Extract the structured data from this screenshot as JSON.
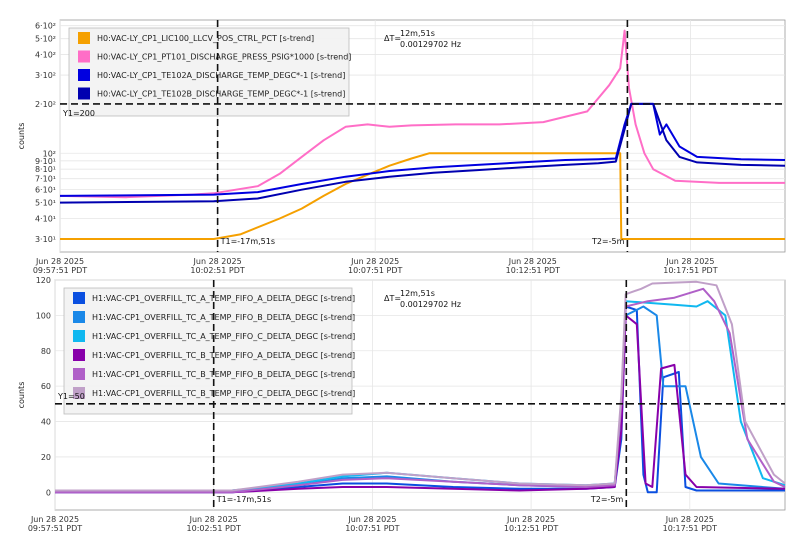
{
  "time_ticks": [
    {
      "date": "Jun 28 2025",
      "time": "09:57:51 PDT"
    },
    {
      "date": "Jun 28 2025",
      "time": "10:02:51 PDT"
    },
    {
      "date": "Jun 28 2025",
      "time": "10:07:51 PDT"
    },
    {
      "date": "Jun 28 2025",
      "time": "10:12:51 PDT"
    },
    {
      "date": "Jun 28 2025",
      "time": "10:17:51 PDT"
    }
  ],
  "cursors": {
    "t1_label": "T1=-17m,51s",
    "t2_label": "T2=-5m",
    "delta_prefix": "ΔT=",
    "delta_time": "12m,51s",
    "delta_freq": "0.00129702 Hz"
  },
  "colors": {
    "orange": "#f5a000",
    "pink": "#ff6ec7",
    "blue": "#0000e0",
    "darkblue": "#0000b0",
    "c_blue": "#0a4fe0",
    "c_azure": "#1a88e8",
    "c_sky": "#10b8f0",
    "c_purple": "#8800aa",
    "c_orchid": "#b060c8",
    "c_lilac": "#c0a0c8"
  },
  "chart_data": [
    {
      "type": "line",
      "ylabel": "counts",
      "yscale": "log",
      "ylim": [
        25,
        650
      ],
      "y_ticks": [
        {
          "value": 30,
          "label": "3·10¹"
        },
        {
          "value": 40,
          "label": "4·10¹"
        },
        {
          "value": 50,
          "label": "5·10¹"
        },
        {
          "value": 60,
          "label": "6·10¹"
        },
        {
          "value": 70,
          "label": "7·10¹"
        },
        {
          "value": 80,
          "label": "8·10¹"
        },
        {
          "value": 90,
          "label": "9·10¹"
        },
        {
          "value": 100,
          "label": "10²"
        },
        {
          "value": 200,
          "label": "2·10²"
        },
        {
          "value": 300,
          "label": "3·10²"
        },
        {
          "value": 400,
          "label": "4·10²"
        },
        {
          "value": 500,
          "label": "5·10²"
        },
        {
          "value": 600,
          "label": "6·10²"
        }
      ],
      "hline": {
        "value": 200,
        "label": "Y1=200"
      },
      "legend_position": "top-left",
      "series": [
        {
          "name": "H0:VAC-LY_CP1_LIC100_LLCV_POS_CTRL_PCT [s-trend]",
          "color": "#f5a000",
          "points": [
            [
              0,
              30
            ],
            [
              7,
              30
            ],
            [
              8.2,
              32
            ],
            [
              10,
              40
            ],
            [
              11,
              46
            ],
            [
              12,
              55
            ],
            [
              13,
              65
            ],
            [
              14,
              74
            ],
            [
              15,
              84
            ],
            [
              16,
              93
            ],
            [
              16.8,
              100
            ],
            [
              24,
              100
            ],
            [
              25.5,
              100
            ],
            [
              25.55,
              30
            ],
            [
              33,
              30
            ]
          ]
        },
        {
          "name": "H0:VAC-LY_CP1_PT101_DISCHARGE_PRESS_PSIG*1000 [s-trend]",
          "color": "#ff6ec7",
          "points": [
            [
              0,
              55
            ],
            [
              3,
              54
            ],
            [
              6,
              56
            ],
            [
              7,
              57
            ],
            [
              8,
              60
            ],
            [
              9,
              63
            ],
            [
              10,
              75
            ],
            [
              11,
              95
            ],
            [
              12,
              120
            ],
            [
              13,
              145
            ],
            [
              14,
              150
            ],
            [
              15,
              145
            ],
            [
              16,
              148
            ],
            [
              18,
              150
            ],
            [
              20,
              150
            ],
            [
              22,
              155
            ],
            [
              24,
              180
            ],
            [
              25,
              260
            ],
            [
              25.5,
              330
            ],
            [
              25.7,
              560
            ],
            [
              25.9,
              250
            ],
            [
              26.2,
              150
            ],
            [
              26.6,
              100
            ],
            [
              27,
              80
            ],
            [
              28,
              68
            ],
            [
              30,
              66
            ],
            [
              33,
              66
            ]
          ]
        },
        {
          "name": "H0:VAC-LY_CP1_TE102A_DISCHARGE_TEMP_DEGC*-1 [s-trend]",
          "color": "#0000e0",
          "points": [
            [
              0,
              55
            ],
            [
              7,
              56
            ],
            [
              9,
              58
            ],
            [
              11,
              65
            ],
            [
              13,
              72
            ],
            [
              15,
              78
            ],
            [
              17,
              82
            ],
            [
              19,
              85
            ],
            [
              21,
              88
            ],
            [
              23,
              91
            ],
            [
              24.5,
              92
            ],
            [
              25.3,
              93
            ],
            [
              25.7,
              150
            ],
            [
              26,
              200
            ],
            [
              27,
              200
            ],
            [
              27.3,
              130
            ],
            [
              27.6,
              150
            ],
            [
              28.2,
              110
            ],
            [
              29,
              95
            ],
            [
              31,
              92
            ],
            [
              33,
              91
            ]
          ]
        },
        {
          "name": "H0:VAC-LY_CP1_TE102B_DISCHARGE_TEMP_DEGC*-1 [s-trend]",
          "color": "#0000b0",
          "points": [
            [
              0,
              50
            ],
            [
              7,
              51
            ],
            [
              9,
              53
            ],
            [
              11,
              60
            ],
            [
              13,
              67
            ],
            [
              15,
              72
            ],
            [
              17,
              76
            ],
            [
              19,
              79
            ],
            [
              21,
              82
            ],
            [
              23,
              85
            ],
            [
              24.5,
              87
            ],
            [
              25.3,
              89
            ],
            [
              25.7,
              140
            ],
            [
              26,
              200
            ],
            [
              27,
              200
            ],
            [
              27.6,
              120
            ],
            [
              28.2,
              95
            ],
            [
              29,
              88
            ],
            [
              31,
              85
            ],
            [
              33,
              84
            ]
          ]
        }
      ]
    },
    {
      "type": "line",
      "ylabel": "counts",
      "yscale": "linear",
      "ylim": [
        -10,
        120
      ],
      "y_ticks": [
        {
          "value": 0,
          "label": "0"
        },
        {
          "value": 20,
          "label": "20"
        },
        {
          "value": 40,
          "label": "40"
        },
        {
          "value": 60,
          "label": "60"
        },
        {
          "value": 80,
          "label": "80"
        },
        {
          "value": 100,
          "label": "100"
        },
        {
          "value": 120,
          "label": "120"
        }
      ],
      "hline": {
        "value": 50,
        "label": "Y1=50"
      },
      "legend_position": "top-left",
      "series": [
        {
          "name": "H1:VAC-CP1_OVERFILL_TC_A_TEMP_FIFO_A_DELTA_DEGC [s-trend]",
          "color": "#0a4fe0",
          "points": [
            [
              0,
              0
            ],
            [
              7,
              0
            ],
            [
              8,
              0
            ],
            [
              11,
              3
            ],
            [
              13,
              5
            ],
            [
              15,
              5
            ],
            [
              18,
              3
            ],
            [
              21,
              2
            ],
            [
              24,
              2
            ],
            [
              25.3,
              3
            ],
            [
              25.6,
              30
            ],
            [
              25.8,
              105
            ],
            [
              26.3,
              103
            ],
            [
              26.6,
              10
            ],
            [
              26.8,
              0
            ],
            [
              27.2,
              0
            ],
            [
              27.5,
              65
            ],
            [
              28.2,
              68
            ],
            [
              28.5,
              3
            ],
            [
              29,
              1
            ],
            [
              33,
              1
            ]
          ]
        },
        {
          "name": "H1:VAC-CP1_OVERFILL_TC_A_TEMP_FIFO_B_DELTA_DEGC [s-trend]",
          "color": "#1a88e8",
          "points": [
            [
              0,
              1
            ],
            [
              7,
              1
            ],
            [
              8,
              1
            ],
            [
              11,
              4
            ],
            [
              13,
              8
            ],
            [
              15,
              9
            ],
            [
              18,
              6
            ],
            [
              21,
              4
            ],
            [
              24,
              3
            ],
            [
              25.3,
              5
            ],
            [
              25.6,
              40
            ],
            [
              25.8,
              100
            ],
            [
              26.6,
              105
            ],
            [
              27.2,
              100
            ],
            [
              27.5,
              60
            ],
            [
              28.5,
              60
            ],
            [
              29.2,
              20
            ],
            [
              30,
              5
            ],
            [
              33,
              2
            ]
          ]
        },
        {
          "name": "H1:VAC-CP1_OVERFILL_TC_A_TEMP_FIFO_C_DELTA_DEGC [s-trend]",
          "color": "#10b8f0",
          "points": [
            [
              0,
              1
            ],
            [
              7,
              1
            ],
            [
              8,
              1
            ],
            [
              11,
              5
            ],
            [
              13,
              9
            ],
            [
              15,
              11
            ],
            [
              18,
              8
            ],
            [
              21,
              5
            ],
            [
              24,
              4
            ],
            [
              25.3,
              5
            ],
            [
              25.6,
              45
            ],
            [
              25.8,
              108
            ],
            [
              28,
              106
            ],
            [
              29,
              105
            ],
            [
              29.5,
              108
            ],
            [
              30.3,
              100
            ],
            [
              31,
              40
            ],
            [
              32,
              8
            ],
            [
              33,
              4
            ]
          ]
        },
        {
          "name": "H1:VAC-CP1_OVERFILL_TC_B_TEMP_FIFO_A_DELTA_DEGC [s-trend]",
          "color": "#8800aa",
          "points": [
            [
              0,
              0
            ],
            [
              7,
              0
            ],
            [
              8,
              0
            ],
            [
              11,
              2
            ],
            [
              13,
              3
            ],
            [
              15,
              3
            ],
            [
              18,
              2
            ],
            [
              21,
              1
            ],
            [
              24,
              2
            ],
            [
              25.3,
              3
            ],
            [
              25.6,
              35
            ],
            [
              25.8,
              100
            ],
            [
              26.3,
              95
            ],
            [
              26.7,
              5
            ],
            [
              27,
              3
            ],
            [
              27.4,
              70
            ],
            [
              28,
              72
            ],
            [
              28.5,
              10
            ],
            [
              29,
              3
            ],
            [
              33,
              2
            ]
          ]
        },
        {
          "name": "H1:VAC-CP1_OVERFILL_TC_B_TEMP_FIFO_B_DELTA_DEGC [s-trend]",
          "color": "#b060c8",
          "points": [
            [
              0,
              0
            ],
            [
              7,
              0
            ],
            [
              8,
              0
            ],
            [
              11,
              4
            ],
            [
              13,
              7
            ],
            [
              15,
              8
            ],
            [
              18,
              6
            ],
            [
              21,
              4
            ],
            [
              24,
              3
            ],
            [
              25.3,
              4
            ],
            [
              25.6,
              50
            ],
            [
              25.8,
              105
            ],
            [
              26.8,
              108
            ],
            [
              28,
              110
            ],
            [
              29.3,
              115
            ],
            [
              29.8,
              108
            ],
            [
              30.5,
              90
            ],
            [
              31.3,
              30
            ],
            [
              32.5,
              6
            ],
            [
              33,
              3
            ]
          ]
        },
        {
          "name": "H1:VAC-CP1_OVERFILL_TC_B_TEMP_FIFO_C_DELTA_DEGC [s-trend]",
          "color": "#c0a0c8",
          "points": [
            [
              0,
              1
            ],
            [
              7,
              1
            ],
            [
              8,
              1
            ],
            [
              11,
              6
            ],
            [
              13,
              10
            ],
            [
              15,
              11
            ],
            [
              18,
              8
            ],
            [
              21,
              5
            ],
            [
              24,
              4
            ],
            [
              25.3,
              5
            ],
            [
              25.6,
              55
            ],
            [
              25.8,
              112
            ],
            [
              26.5,
              115
            ],
            [
              27,
              118
            ],
            [
              29,
              119
            ],
            [
              29.9,
              117
            ],
            [
              30.6,
              95
            ],
            [
              31.2,
              40
            ],
            [
              32.5,
              10
            ],
            [
              33,
              5
            ]
          ]
        }
      ]
    }
  ]
}
